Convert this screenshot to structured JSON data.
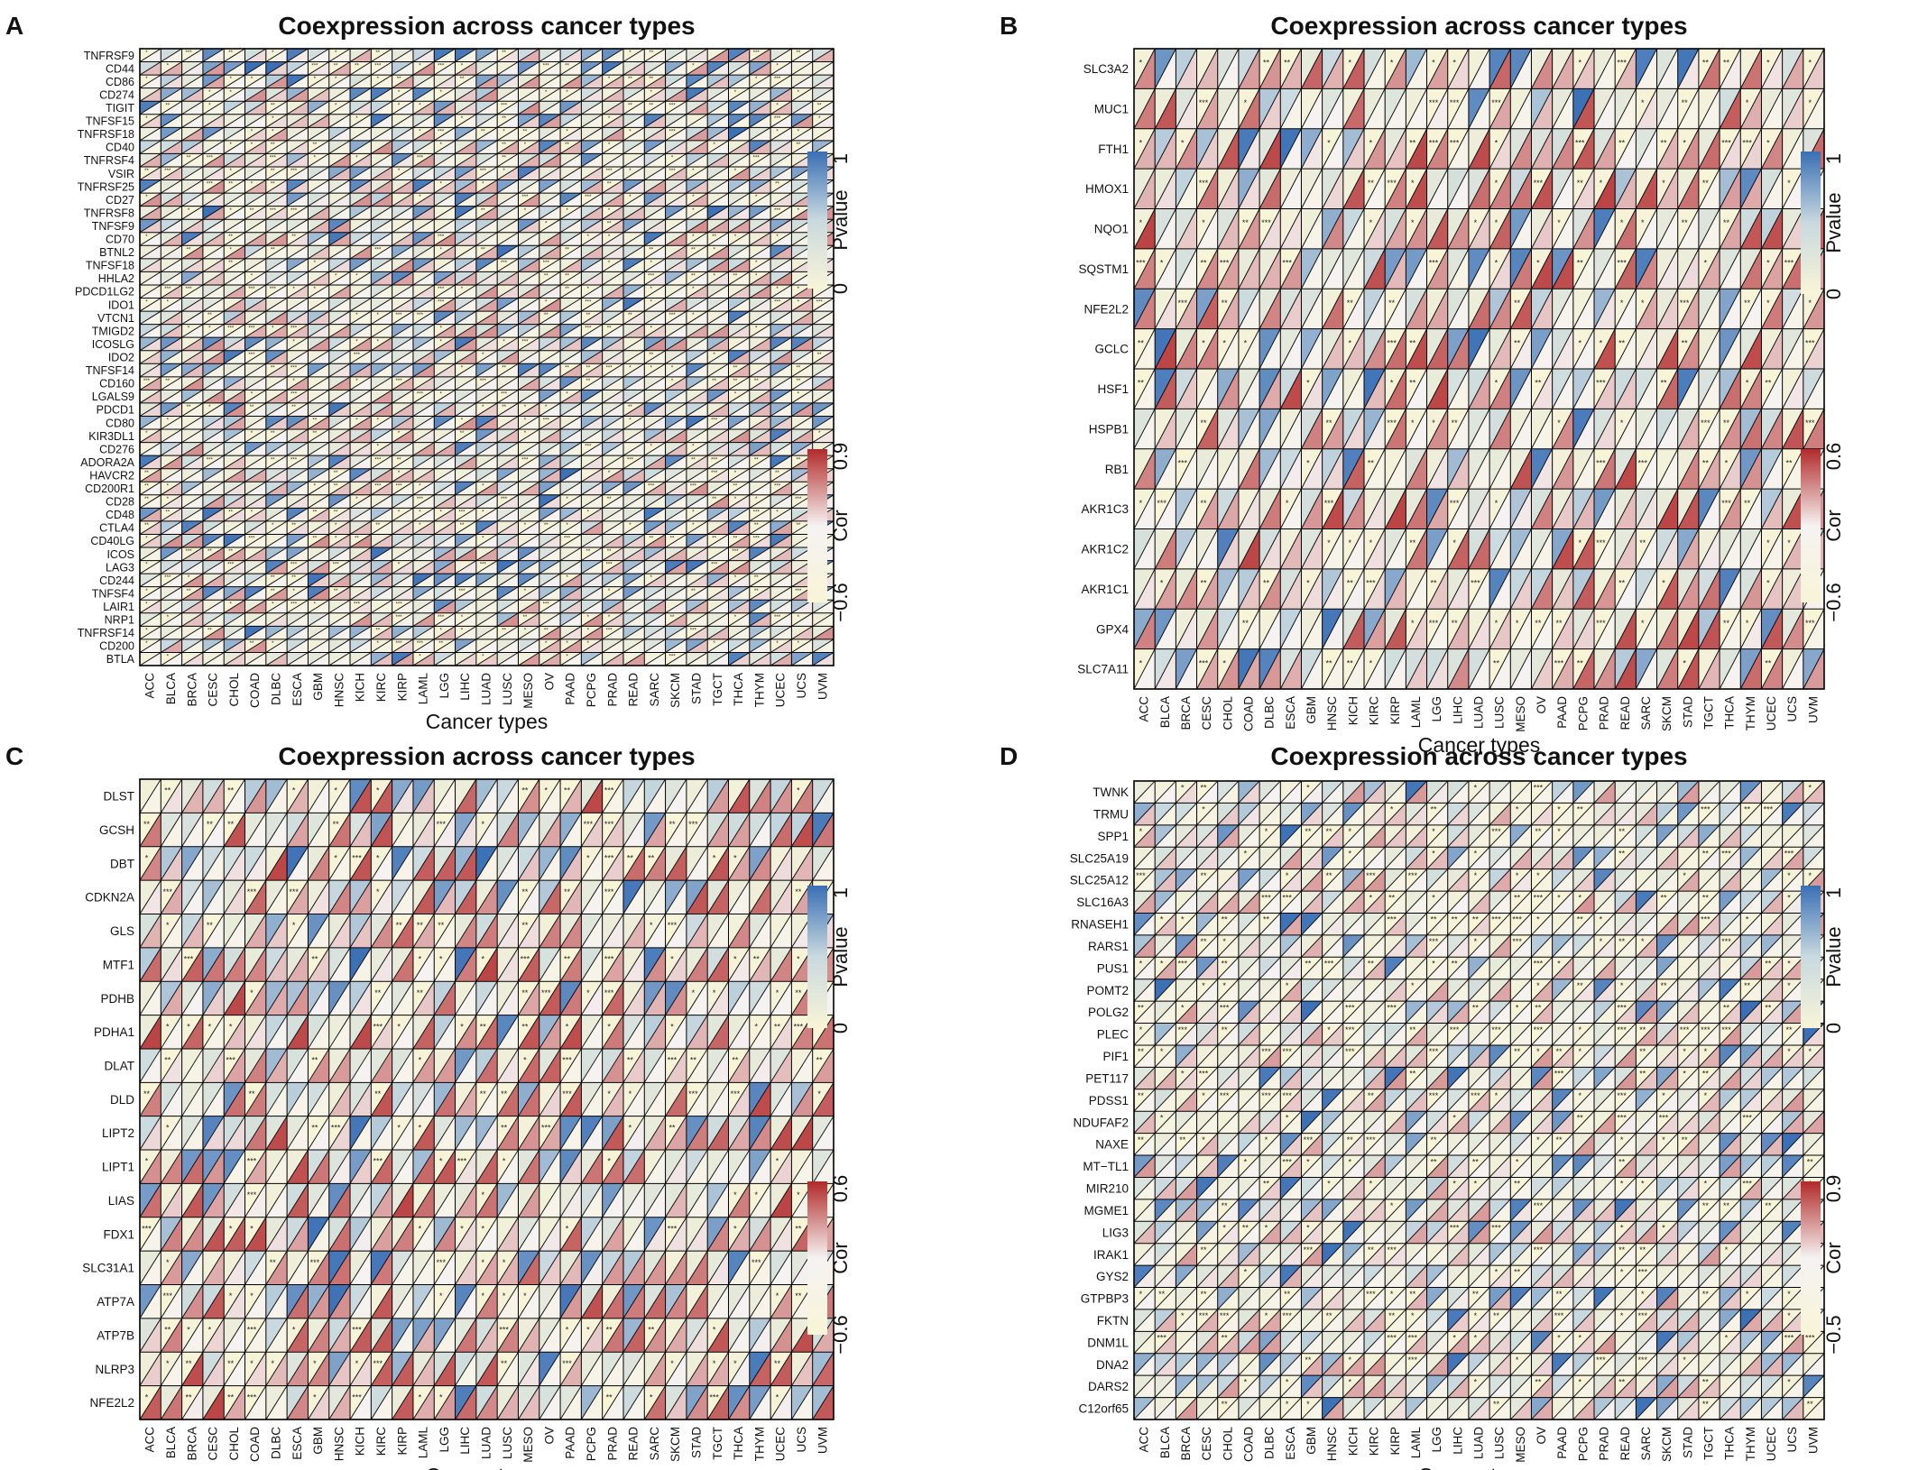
{
  "figure": {
    "cancer_types": [
      "ACC",
      "BLCA",
      "BRCA",
      "CESC",
      "CHOL",
      "COAD",
      "DLBC",
      "ESCA",
      "GBM",
      "HNSC",
      "KICH",
      "KIRC",
      "KIRP",
      "LAML",
      "LGG",
      "LIHC",
      "LUAD",
      "LUSC",
      "MESO",
      "OV",
      "PAAD",
      "PCPG",
      "PRAD",
      "READ",
      "SARC",
      "SKCM",
      "STAD",
      "TGCT",
      "THCA",
      "THYM",
      "UCEC",
      "UCS",
      "UVM"
    ],
    "colors": {
      "low": "#f8f4d8",
      "pvalue_high": "#3a6fb5",
      "pvalue_mid": "#c9d9df",
      "cor_high": "#b22a2a",
      "cor_mid": "#f6f2f2",
      "frame": "#000000"
    }
  },
  "chart_data": [
    {
      "type": "heatmap",
      "panel": "A",
      "title": "Coexpression across cancer types",
      "xlabel": "Cancer types",
      "pvalue_legend": {
        "title": "Pvalue",
        "max": "1",
        "min": "0"
      },
      "cor_legend": {
        "title": "Cor",
        "max": "0.9",
        "min": "−0.6"
      },
      "cor_range": [
        -0.6,
        0.9
      ],
      "genes": [
        "TNFRSF9",
        "CD44",
        "CD86",
        "CD274",
        "TIGIT",
        "TNFSF15",
        "TNFRSF18",
        "CD40",
        "TNFRSF4",
        "VSIR",
        "TNFRSF25",
        "CD27",
        "TNFRSF8",
        "TNFSF9",
        "CD70",
        "BTNL2",
        "TNFSF18",
        "HHLA2",
        "PDCD1LG2",
        "IDO1",
        "VTCN1",
        "TMIGD2",
        "ICOSLG",
        "IDO2",
        "TNFSF14",
        "CD160",
        "LGALS9",
        "PDCD1",
        "CD80",
        "KIR3DL1",
        "CD276",
        "ADORA2A",
        "HAVCR2",
        "CD200R1",
        "CD28",
        "CD48",
        "CTLA4",
        "CD40LG",
        "ICOS",
        "LAG3",
        "CD244",
        "TNFSF4",
        "LAIR1",
        "NRP1",
        "TNFRSF14",
        "CD200",
        "BTLA"
      ]
    },
    {
      "type": "heatmap",
      "panel": "B",
      "title": "Coexpression across cancer types",
      "xlabel": "Cancer types",
      "pvalue_legend": {
        "title": "Pvalue",
        "max": "1",
        "min": "0"
      },
      "cor_legend": {
        "title": "Cor",
        "max": "0.6",
        "min": "−0.6"
      },
      "cor_range": [
        -0.6,
        0.6
      ],
      "genes": [
        "SLC3A2",
        "MUC1",
        "FTH1",
        "HMOX1",
        "NQO1",
        "SQSTM1",
        "NFE2L2",
        "GCLC",
        "HSF1",
        "HSPB1",
        "RB1",
        "AKR1C3",
        "AKR1C2",
        "AKR1C1",
        "GPX4",
        "SLC7A11"
      ]
    },
    {
      "type": "heatmap",
      "panel": "C",
      "title": "Coexpression across cancer types",
      "xlabel": "Cancer types",
      "pvalue_legend": {
        "title": "Pvalue",
        "max": "1",
        "min": "0"
      },
      "cor_legend": {
        "title": "Cor",
        "max": "0.6",
        "min": "−0.6"
      },
      "cor_range": [
        -0.6,
        0.6
      ],
      "genes": [
        "DLST",
        "GCSH",
        "DBT",
        "CDKN2A",
        "GLS",
        "MTF1",
        "PDHB",
        "PDHA1",
        "DLAT",
        "DLD",
        "LIPT2",
        "LIPT1",
        "LIAS",
        "FDX1",
        "SLC31A1",
        "ATP7A",
        "ATP7B",
        "NLRP3",
        "NFE2L2"
      ]
    },
    {
      "type": "heatmap",
      "panel": "D",
      "title": "Coexpression across cancer types",
      "xlabel": "Cancer types",
      "pvalue_legend": {
        "title": "Pvalue",
        "max": "1",
        "min": "0"
      },
      "cor_legend": {
        "title": "Cor",
        "max": "0.9",
        "min": "−0.5"
      },
      "cor_range": [
        -0.5,
        0.9
      ],
      "genes": [
        "TWNK",
        "TRMU",
        "SPP1",
        "SLC25A19",
        "SLC25A12",
        "SLC16A3",
        "RNASEH1",
        "RARS1",
        "PUS1",
        "POMT2",
        "POLG2",
        "PLEC",
        "PIF1",
        "PET117",
        "PDSS1",
        "NDUFAF2",
        "NAXE",
        "MT−TL1",
        "MIR210",
        "MGME1",
        "LIG3",
        "IRAK1",
        "GYS2",
        "GTPBP3",
        "FKTN",
        "DNM1L",
        "DNA2",
        "DARS2",
        "C12orf65"
      ]
    }
  ]
}
